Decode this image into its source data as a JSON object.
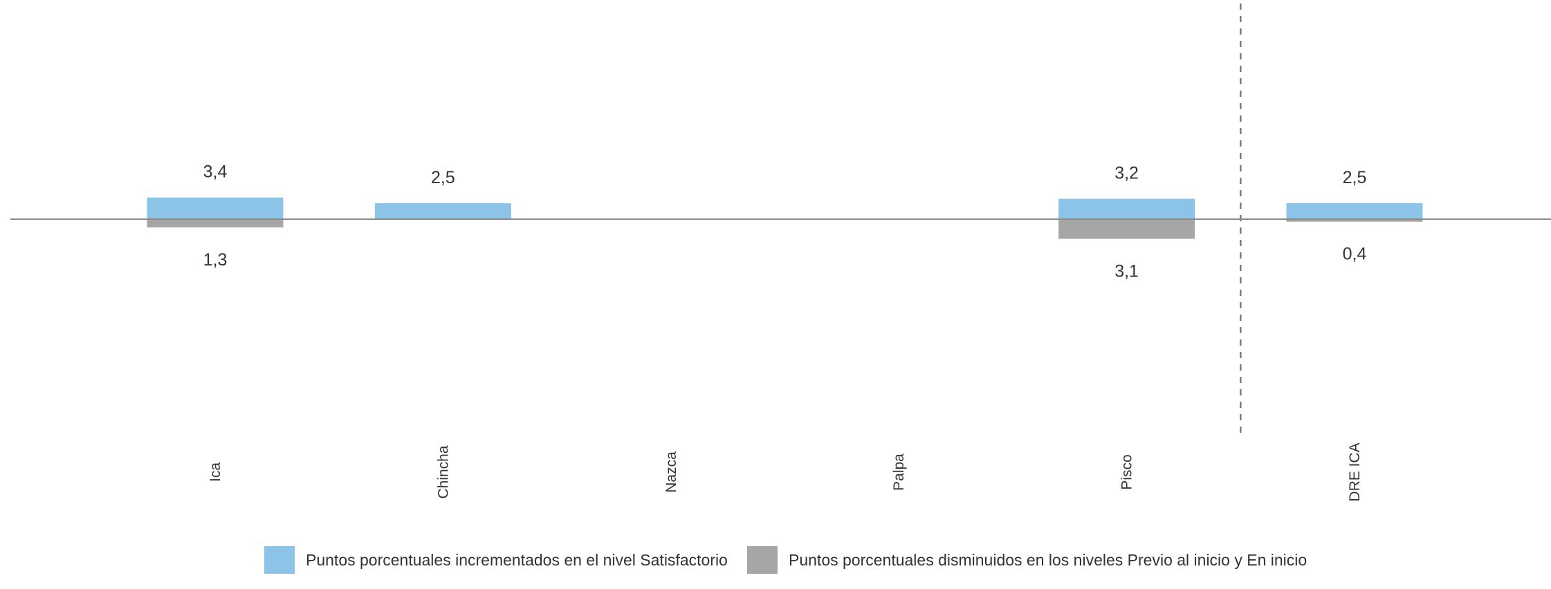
{
  "chart_data": {
    "type": "bar",
    "categories": [
      "Ica",
      "Chincha",
      "Nazca",
      "Palpa",
      "Pisco",
      "DRE ICA"
    ],
    "series": [
      {
        "name": "Puntos porcentuales incrementados en el nivel Satisfactorio",
        "color": "#8CC4E8",
        "direction": "up",
        "values": [
          3.4,
          2.5,
          null,
          null,
          3.2,
          2.5
        ],
        "labels": [
          "3,4",
          "2,5",
          "",
          "",
          "3,2",
          "2,5"
        ]
      },
      {
        "name": "Puntos porcentuales disminuidos en los niveles Previo al inicio y En inicio",
        "color": "#A6A6A6",
        "direction": "down",
        "values": [
          1.3,
          null,
          null,
          null,
          3.1,
          0.4
        ],
        "labels": [
          "1,3",
          "",
          "",
          "",
          "3,1",
          "0,4"
        ]
      }
    ],
    "separator_after_category": "Pisco",
    "legend_position": "bottom",
    "grid": false
  }
}
